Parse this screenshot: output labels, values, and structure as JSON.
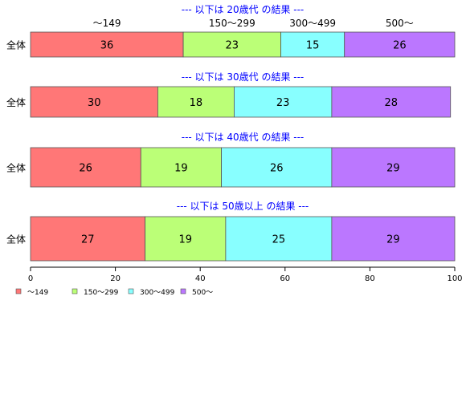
{
  "chart_data": {
    "type": "bar",
    "orientation": "horizontal",
    "stacked": true,
    "legend_position": "bottom-left",
    "grid": false,
    "xlim": [
      0,
      100
    ],
    "x_ticks": [
      "0",
      "20",
      "40",
      "60",
      "80",
      "100"
    ],
    "categories": [
      "～149",
      "150～299",
      "300～499",
      "500～"
    ],
    "colors": [
      "#ff7777",
      "#bbff77",
      "#88ffff",
      "#bb77ff"
    ],
    "panels": [
      {
        "title": "--- 以下は 20歳代 の結果 ---",
        "row_label": "全体",
        "values": [
          36,
          23,
          15,
          26
        ]
      },
      {
        "title": "--- 以下は 30歳代 の結果 ---",
        "row_label": "全体",
        "values": [
          30,
          18,
          23,
          28
        ]
      },
      {
        "title": "--- 以下は 40歳代 の結果 ---",
        "row_label": "全体",
        "values": [
          26,
          19,
          26,
          29
        ]
      },
      {
        "title": "--- 以下は 50歳以上 の結果 ---",
        "row_label": "全体",
        "values": [
          27,
          19,
          25,
          29
        ]
      }
    ]
  }
}
